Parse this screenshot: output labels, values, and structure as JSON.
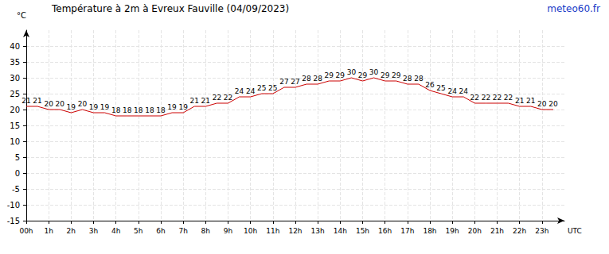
{
  "chart_data": {
    "type": "line",
    "title": "Température à 2m à Evreux Fauville (04/09/2023)",
    "source": "meteo60.fr",
    "y_label": "°C",
    "x_label": "UTC",
    "x": [
      0,
      0.5,
      1,
      1.5,
      2,
      2.5,
      3,
      3.5,
      4,
      4.5,
      5,
      5.5,
      6,
      6.5,
      7,
      7.5,
      8,
      8.5,
      9,
      9.5,
      10,
      10.5,
      11,
      11.5,
      12,
      12.5,
      13,
      13.5,
      14,
      14.5,
      15,
      15.5,
      16,
      16.5,
      17,
      17.5,
      18,
      18.5,
      19,
      19.5,
      20,
      20.5,
      21,
      21.5,
      22,
      22.5,
      23,
      23.5
    ],
    "values": [
      21,
      21,
      20,
      20,
      19,
      20,
      19,
      19,
      18,
      18,
      18,
      18,
      18,
      19,
      19,
      21,
      21,
      22,
      22,
      24,
      24,
      25,
      25,
      27,
      27,
      28,
      28,
      29,
      29,
      30,
      29,
      30,
      29,
      29,
      28,
      28,
      26,
      25,
      24,
      24,
      22,
      22,
      22,
      22,
      21,
      21,
      20,
      20
    ],
    "color": "#cc0000",
    "xlim": [
      0,
      24
    ],
    "xticks": [
      {
        "value": 0,
        "label": "00h"
      },
      {
        "value": 1,
        "label": "1h"
      },
      {
        "value": 2,
        "label": "2h"
      },
      {
        "value": 3,
        "label": "3h"
      },
      {
        "value": 4,
        "label": "4h"
      },
      {
        "value": 5,
        "label": "5h"
      },
      {
        "value": 6,
        "label": "6h"
      },
      {
        "value": 7,
        "label": "7h"
      },
      {
        "value": 8,
        "label": "8h"
      },
      {
        "value": 9,
        "label": "9h"
      },
      {
        "value": 10,
        "label": "10h"
      },
      {
        "value": 11,
        "label": "11h"
      },
      {
        "value": 12,
        "label": "12h"
      },
      {
        "value": 13,
        "label": "13h"
      },
      {
        "value": 14,
        "label": "14h"
      },
      {
        "value": 15,
        "label": "15h"
      },
      {
        "value": 16,
        "label": "16h"
      },
      {
        "value": 17,
        "label": "17h"
      },
      {
        "value": 18,
        "label": "18h"
      },
      {
        "value": 19,
        "label": "19h"
      },
      {
        "value": 20,
        "label": "20h"
      },
      {
        "value": 21,
        "label": "21h"
      },
      {
        "value": 22,
        "label": "22h"
      },
      {
        "value": 23,
        "label": "23h"
      }
    ],
    "ylim": [
      -15,
      45
    ],
    "yticks": [
      -15,
      -10,
      -5,
      0,
      5,
      10,
      15,
      20,
      25,
      30,
      35,
      40
    ],
    "grid": true,
    "data_labels": true
  }
}
